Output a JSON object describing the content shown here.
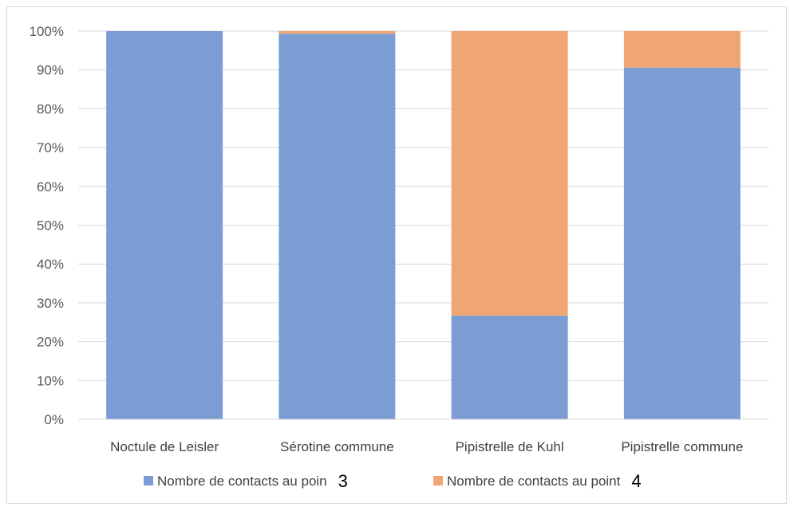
{
  "chart_data": {
    "type": "bar",
    "stacked": true,
    "percent": true,
    "categories": [
      "Noctule de Leisler",
      "Sérotine commune",
      "Pipistrelle de Kuhl",
      "Pipistrelle commune"
    ],
    "series": [
      {
        "name": "Nombre de contacts au poin",
        "suffix": "3",
        "color": "#7b9dd4",
        "values": [
          100,
          99.3,
          26.7,
          90.6
        ]
      },
      {
        "name": "Nombre de contacts au point",
        "suffix": "4",
        "color": "#f0a672",
        "values": [
          0,
          0.7,
          73.3,
          9.4
        ]
      }
    ],
    "ylim": [
      0,
      100
    ],
    "yticks": [
      "0%",
      "10%",
      "20%",
      "30%",
      "40%",
      "50%",
      "60%",
      "70%",
      "80%",
      "90%",
      "100%"
    ],
    "grid": true,
    "legend": "bottom",
    "xlabel": "",
    "ylabel": "",
    "title": ""
  }
}
